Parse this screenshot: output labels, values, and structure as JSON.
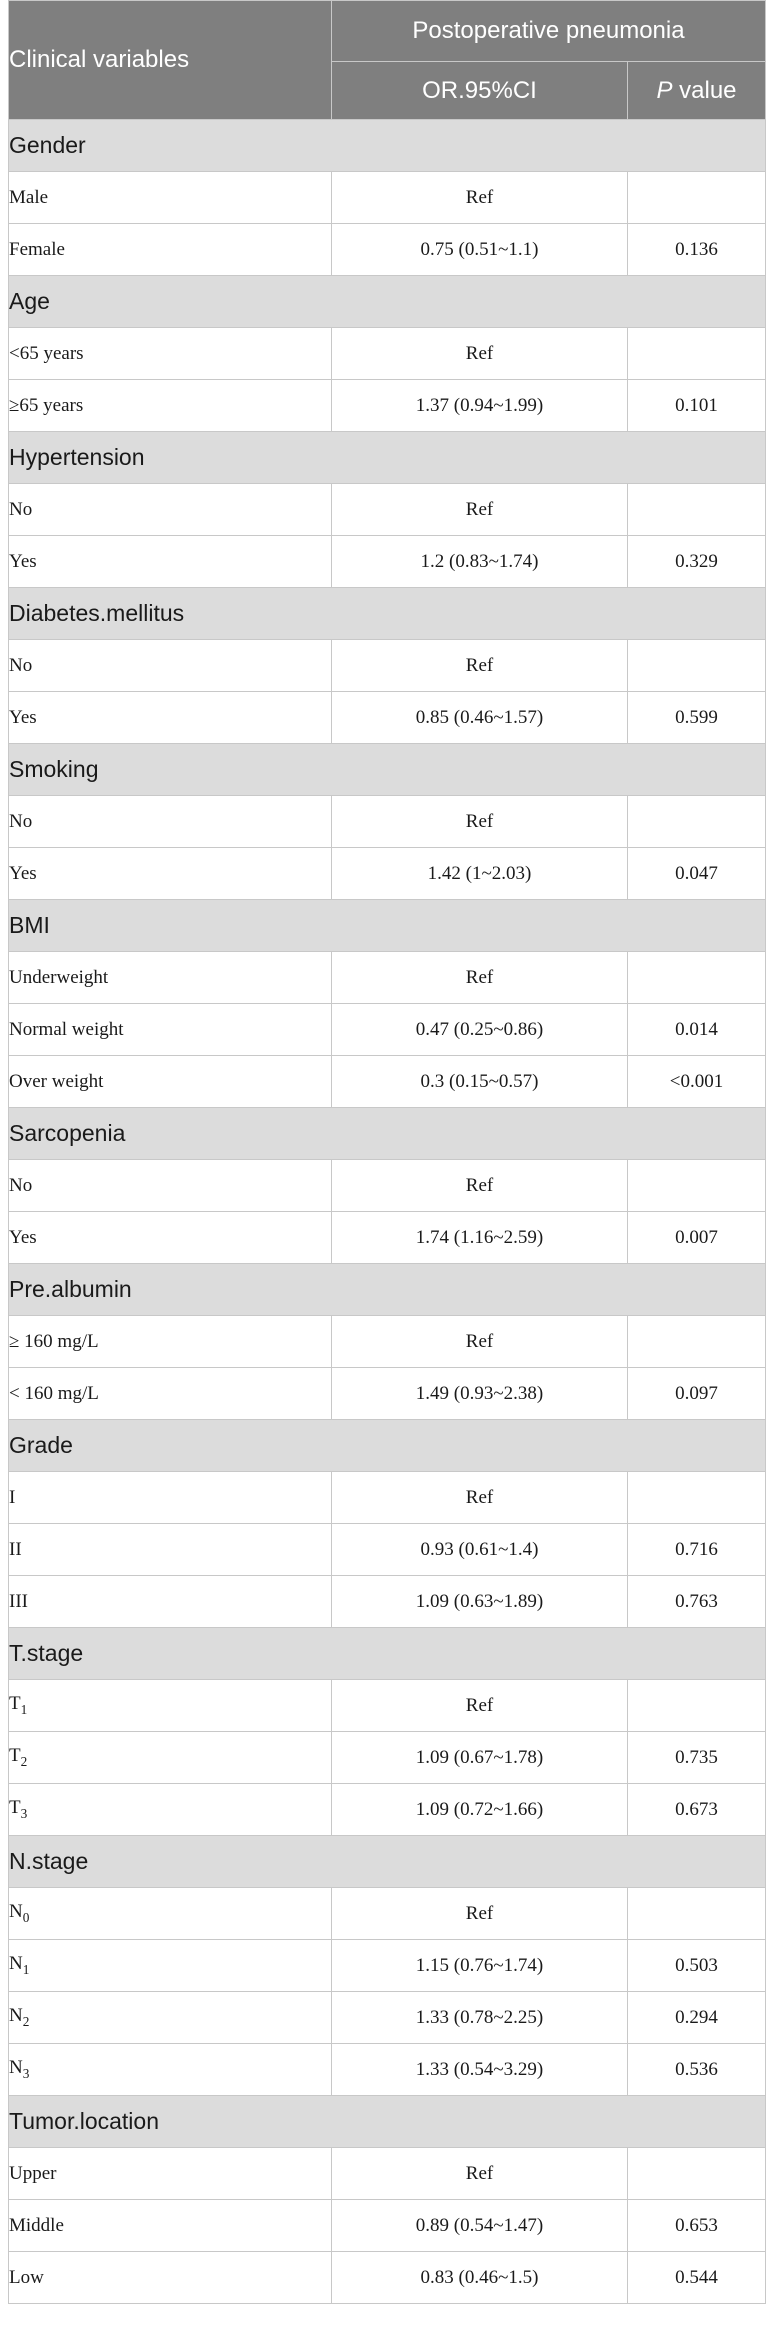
{
  "header": {
    "col1": "Clinical variables",
    "group": "Postoperative pneumonia",
    "ci": "OR.95%CI",
    "p_italic": "P",
    "p_rest": " value"
  },
  "groups": [
    {
      "name": "Gender",
      "rows": [
        {
          "label": "Male",
          "ci": "Ref",
          "p": ""
        },
        {
          "label": "Female",
          "ci": "0.75 (0.51~1.1)",
          "p": "0.136"
        }
      ]
    },
    {
      "name": "Age",
      "rows": [
        {
          "label": "<65 years",
          "ci": "Ref",
          "p": ""
        },
        {
          "label": "≥65 years",
          "ci": "1.37 (0.94~1.99)",
          "p": "0.101"
        }
      ]
    },
    {
      "name": "Hypertension",
      "rows": [
        {
          "label": "No",
          "ci": "Ref",
          "p": ""
        },
        {
          "label": "Yes",
          "ci": "1.2 (0.83~1.74)",
          "p": "0.329"
        }
      ]
    },
    {
      "name": "Diabetes.mellitus",
      "rows": [
        {
          "label": "No",
          "ci": "Ref",
          "p": ""
        },
        {
          "label": "Yes",
          "ci": "0.85 (0.46~1.57)",
          "p": "0.599"
        }
      ]
    },
    {
      "name": "Smoking",
      "rows": [
        {
          "label": "No",
          "ci": "Ref",
          "p": ""
        },
        {
          "label": "Yes",
          "ci": "1.42 (1~2.03)",
          "p": "0.047"
        }
      ]
    },
    {
      "name": "BMI",
      "rows": [
        {
          "label": "Underweight",
          "ci": "Ref",
          "p": ""
        },
        {
          "label": "Normal weight",
          "ci": "0.47 (0.25~0.86)",
          "p": "0.014"
        },
        {
          "label": "Over weight",
          "ci": "0.3 (0.15~0.57)",
          "p": "<0.001"
        }
      ]
    },
    {
      "name": "Sarcopenia",
      "rows": [
        {
          "label": "No",
          "ci": "Ref",
          "p": ""
        },
        {
          "label": "Yes",
          "ci": "1.74 (1.16~2.59)",
          "p": "0.007"
        }
      ]
    },
    {
      "name": "Pre.albumin",
      "rows": [
        {
          "label": "≥ 160 mg/L",
          "ci": "Ref",
          "p": ""
        },
        {
          "label": "< 160 mg/L",
          "ci": "1.49 (0.93~2.38)",
          "p": "0.097"
        }
      ]
    },
    {
      "name": "Grade",
      "rows": [
        {
          "label": "I",
          "ci": "Ref",
          "p": ""
        },
        {
          "label": "II",
          "ci": "0.93 (0.61~1.4)",
          "p": "0.716"
        },
        {
          "label": "III",
          "ci": "1.09 (0.63~1.89)",
          "p": "0.763"
        }
      ]
    },
    {
      "name": "T.stage",
      "rows": [
        {
          "label": "T",
          "sub": "1",
          "ci": "Ref",
          "p": ""
        },
        {
          "label": "T",
          "sub": "2",
          "ci": "1.09 (0.67~1.78)",
          "p": "0.735"
        },
        {
          "label": "T",
          "sub": "3",
          "ci": "1.09 (0.72~1.66)",
          "p": "0.673"
        }
      ]
    },
    {
      "name": "N.stage",
      "rows": [
        {
          "label": "N",
          "sub": "0",
          "ci": "Ref",
          "p": ""
        },
        {
          "label": "N",
          "sub": "1",
          "ci": "1.15 (0.76~1.74)",
          "p": "0.503"
        },
        {
          "label": "N",
          "sub": "2",
          "ci": "1.33 (0.78~2.25)",
          "p": "0.294"
        },
        {
          "label": "N",
          "sub": "3",
          "ci": "1.33 (0.54~3.29)",
          "p": "0.536"
        }
      ]
    },
    {
      "name": "Tumor.location",
      "rows": [
        {
          "label": "Upper",
          "ci": "Ref",
          "p": ""
        },
        {
          "label": "Middle",
          "ci": "0.89 (0.54~1.47)",
          "p": "0.653"
        },
        {
          "label": "Low",
          "ci": "0.83 (0.46~1.5)",
          "p": "0.544"
        }
      ]
    }
  ]
}
